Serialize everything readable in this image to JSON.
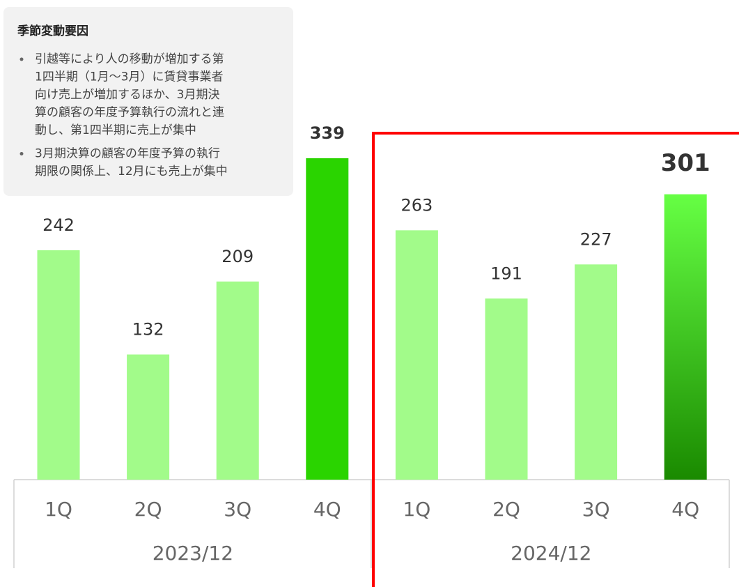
{
  "note": {
    "title": "季節変動要因",
    "bullets": [
      [
        "引越等により人の移動が増加する第",
        "1四半期（1月〜3月）に賃貸事業者",
        "向け売上が増加するほか、3月期決",
        "算の顧客の年度予算執行の流れと連",
        "動し、第1四半期に売上が集中"
      ],
      [
        "3月期決算の顧客の年度予算の執行",
        "期限の関係上、12月にも売上が集中"
      ]
    ]
  },
  "chart_data": {
    "type": "bar",
    "categories": [
      "1Q",
      "2Q",
      "3Q",
      "4Q",
      "1Q",
      "2Q",
      "3Q",
      "4Q"
    ],
    "groups": [
      "2023/12",
      "2024/12"
    ],
    "values": [
      242,
      132,
      209,
      339,
      263,
      191,
      227,
      301
    ],
    "colors": [
      "#a2fb8a",
      "#a2fb8a",
      "#a2fb8a",
      "#2ad400",
      "#a2fb8a",
      "#a2fb8a",
      "#a2fb8a",
      [
        "#66ff44",
        "#1a8a00"
      ]
    ],
    "bold": [
      3,
      7
    ]
  }
}
